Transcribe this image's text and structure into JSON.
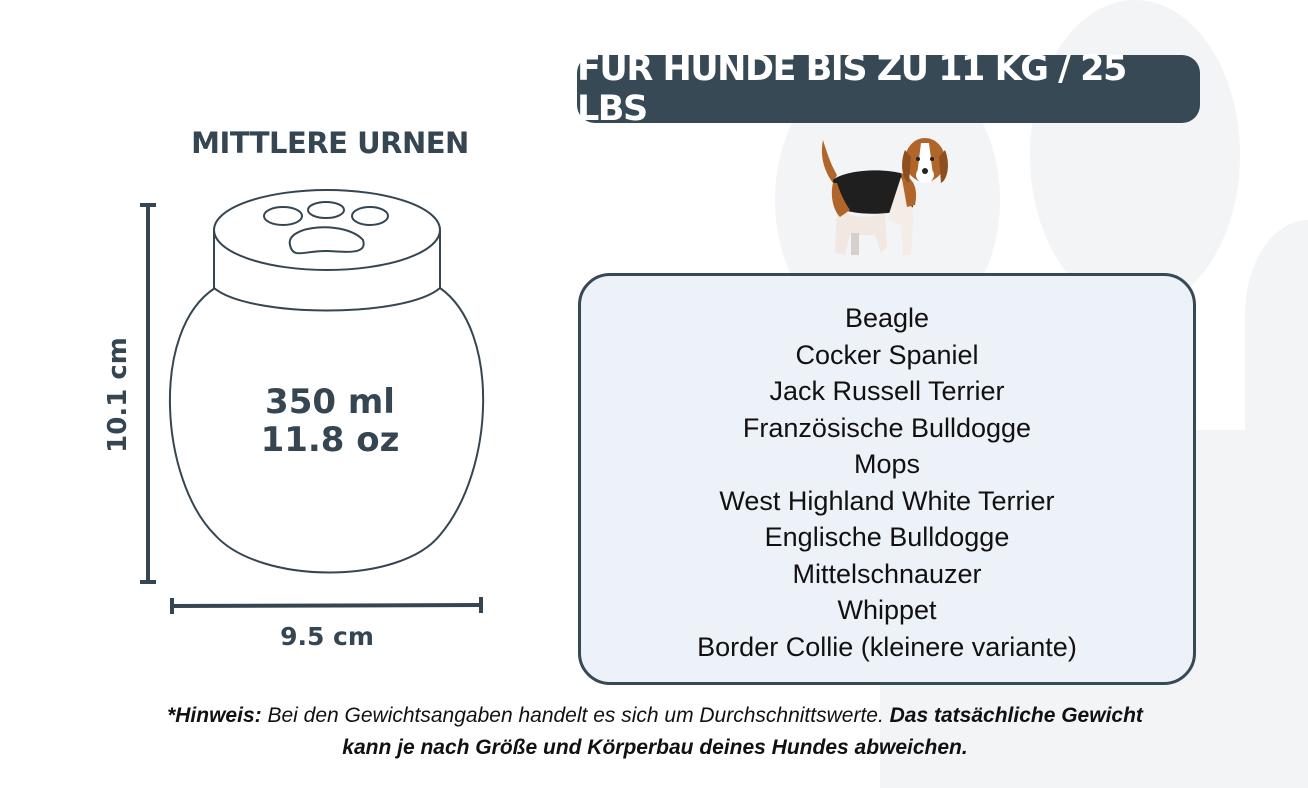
{
  "urn": {
    "title": "MITTLERE URNEN",
    "volume_ml": "350 ml",
    "volume_oz": "11.8 oz",
    "height": "10.1 cm",
    "width": "9.5 cm",
    "icon": "paw-print-icon"
  },
  "banner": {
    "text": "FÜR HUNDE BIS ZU 11 KG / 25 LBS"
  },
  "dog_image": "beagle-illustration",
  "breeds": [
    "Beagle",
    "Cocker Spaniel",
    "Jack Russell Terrier",
    "Französische Bulldogge",
    "Mops",
    "West Highland White Terrier",
    "Englische Bulldogge",
    "Mittelschnauzer",
    "Whippet",
    "Border Collie (kleinere variante)"
  ],
  "note": {
    "label": "*Hinweis:",
    "text": " Bei den Gewichtsangaben handelt es sich um Durchschnittswerte. ",
    "bold_text": "Das tatsächliche Gewicht kann je nach Größe und Körperbau deines Hundes abweichen."
  },
  "colors": {
    "dark": "#364955",
    "box_fill": "#edf1f8",
    "background_paw": "#f3f4f6"
  }
}
